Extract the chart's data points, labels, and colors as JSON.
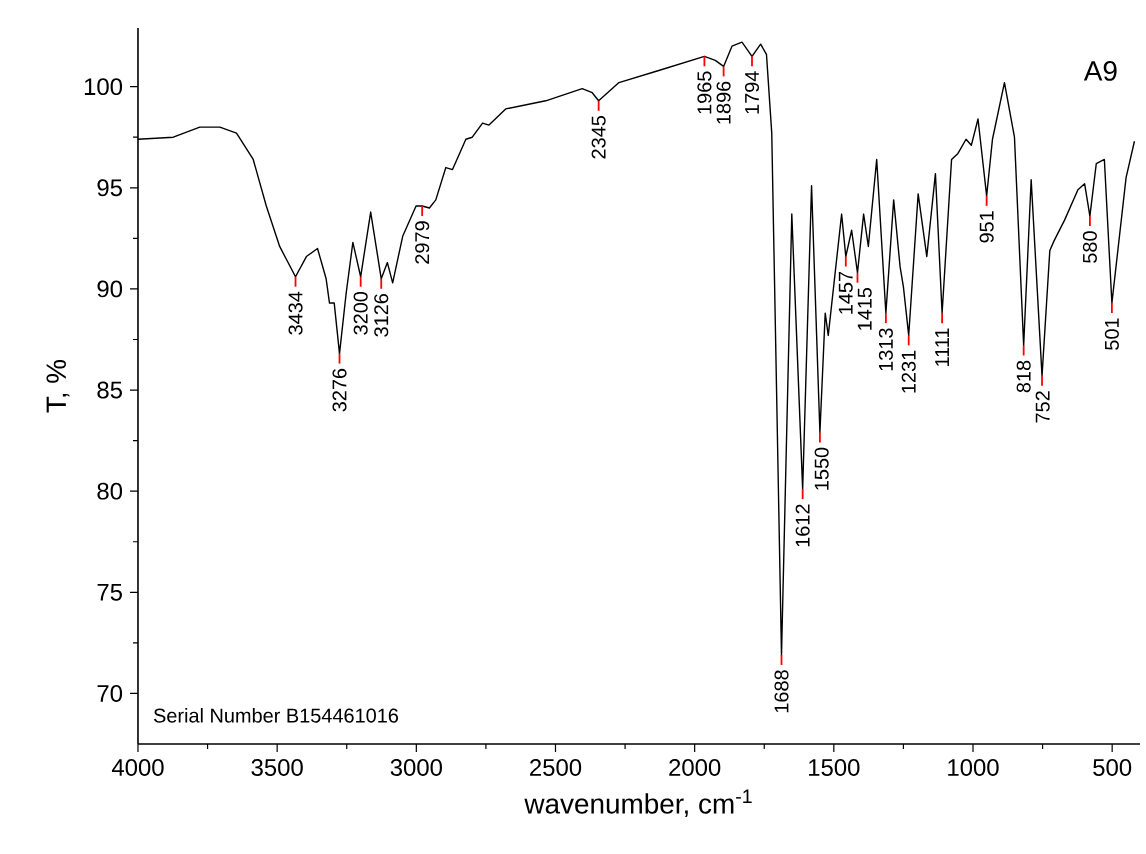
{
  "chart_data": {
    "type": "line",
    "xlabel": "wavenumber, cm$^{-1}$",
    "ylabel": "T, %",
    "xlim": [
      4000,
      400
    ],
    "ylim": [
      67.5,
      102.9
    ],
    "xticks": [
      4000,
      3500,
      3000,
      2500,
      2000,
      1500,
      1000,
      500
    ],
    "yticks": [
      70,
      75,
      80,
      85,
      90,
      95,
      100
    ],
    "grid": false,
    "marker": "none",
    "line_style": "solid",
    "series": [
      {
        "color": "#000000",
        "x": [
          4000,
          3873,
          3778,
          3706,
          3646,
          3586,
          3539,
          3491,
          3434,
          3395,
          3355,
          3324,
          3312,
          3295,
          3276,
          3252,
          3228,
          3200,
          3164,
          3126,
          3104,
          3085,
          3049,
          3001,
          2979,
          2953,
          2930,
          2894,
          2870,
          2822,
          2799,
          2762,
          2739,
          2679,
          2535,
          2404,
          2368,
          2345,
          2272,
          2129,
          1965,
          1926,
          1896,
          1866,
          1830,
          1794,
          1763,
          1742,
          1723,
          1688,
          1651,
          1612,
          1580,
          1550,
          1531,
          1520,
          1472,
          1457,
          1436,
          1415,
          1393,
          1376,
          1346,
          1313,
          1285,
          1262,
          1250,
          1231,
          1197,
          1166,
          1135,
          1111,
          1077,
          1054,
          1025,
          1006,
          982,
          951,
          930,
          887,
          851,
          818,
          791,
          752,
          724,
          708,
          671,
          623,
          599,
          580,
          557,
          528,
          501,
          450,
          420
        ],
        "values": [
          97.4,
          97.5,
          98.0,
          98.0,
          97.7,
          96.4,
          94.1,
          92.1,
          90.6,
          91.6,
          92.0,
          90.5,
          89.3,
          89.3,
          86.8,
          89.8,
          92.3,
          90.6,
          93.8,
          90.5,
          91.3,
          90.3,
          92.6,
          94.1,
          94.1,
          94.0,
          94.4,
          96.0,
          95.9,
          97.4,
          97.5,
          98.2,
          98.1,
          98.9,
          99.3,
          99.9,
          99.7,
          99.3,
          100.2,
          100.8,
          101.5,
          101.3,
          101.0,
          102.0,
          102.2,
          101.5,
          102.1,
          101.6,
          97.7,
          71.9,
          93.7,
          80.1,
          95.1,
          82.9,
          88.8,
          87.7,
          93.7,
          91.6,
          92.9,
          90.8,
          93.7,
          92.1,
          96.4,
          88.8,
          94.4,
          91.1,
          90.1,
          87.7,
          94.7,
          91.6,
          95.7,
          88.8,
          96.4,
          96.7,
          97.4,
          97.1,
          98.4,
          94.6,
          97.4,
          100.2,
          97.5,
          87.2,
          95.4,
          85.7,
          91.9,
          92.4,
          93.4,
          94.9,
          95.2,
          93.6,
          96.2,
          96.4,
          89.3,
          95.5,
          97.3
        ]
      }
    ],
    "annotations": [
      {
        "text": "3434",
        "x": 3434,
        "y": 90.6
      },
      {
        "text": "3276",
        "x": 3276,
        "y": 86.8
      },
      {
        "text": "3200",
        "x": 3200,
        "y": 90.6
      },
      {
        "text": "3126",
        "x": 3126,
        "y": 90.5
      },
      {
        "text": "2979",
        "x": 2979,
        "y": 94.1
      },
      {
        "text": "2345",
        "x": 2345,
        "y": 99.3
      },
      {
        "text": "1965",
        "x": 1965,
        "y": 101.5
      },
      {
        "text": "1896",
        "x": 1896,
        "y": 101.0
      },
      {
        "text": "1794",
        "x": 1794,
        "y": 101.5
      },
      {
        "text": "1688",
        "x": 1688,
        "y": 71.9
      },
      {
        "text": "1612",
        "x": 1612,
        "y": 80.1
      },
      {
        "text": "1550",
        "x": 1550,
        "y": 82.9
      },
      {
        "text": "1457",
        "x": 1457,
        "y": 91.6
      },
      {
        "text": "1415",
        "x": 1415,
        "y": 90.8
      },
      {
        "text": "1313",
        "x": 1313,
        "y": 88.8
      },
      {
        "text": "1231",
        "x": 1231,
        "y": 87.7
      },
      {
        "text": "1111",
        "x": 1111,
        "y": 88.8
      },
      {
        "text": "951",
        "x": 951,
        "y": 94.6
      },
      {
        "text": "818",
        "x": 818,
        "y": 87.2
      },
      {
        "text": "752",
        "x": 752,
        "y": 85.7
      },
      {
        "text": "580",
        "x": 580,
        "y": 93.6
      },
      {
        "text": "501",
        "x": 501,
        "y": 89.3
      },
      "A9",
      "Serial Number B154461016"
    ]
  }
}
